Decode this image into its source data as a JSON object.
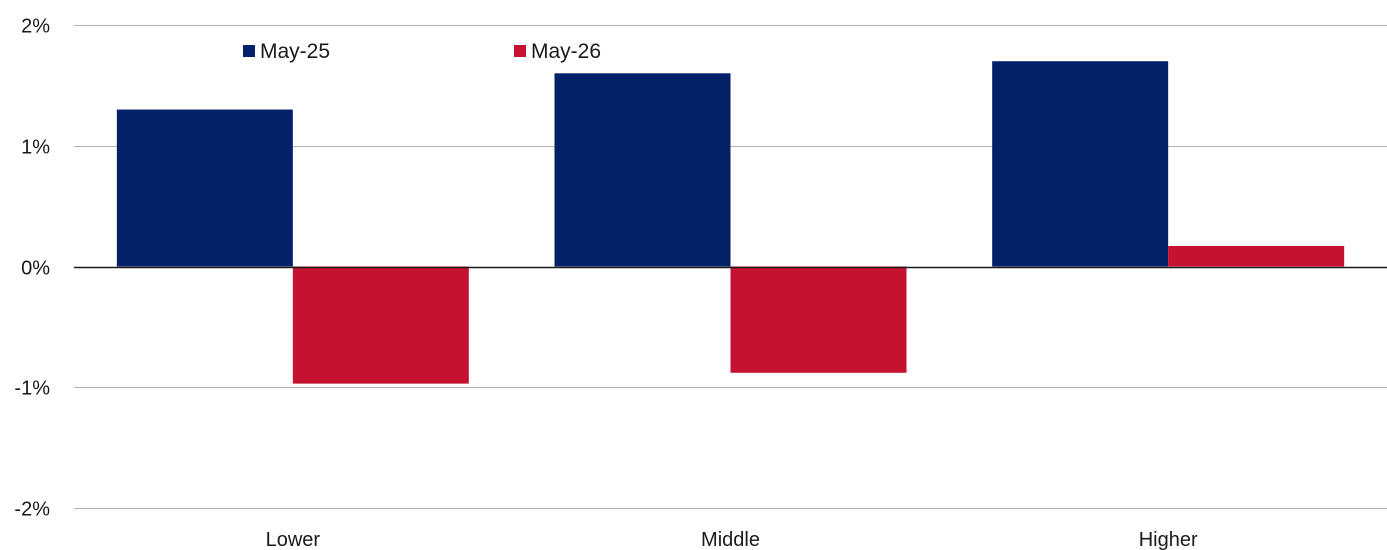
{
  "chart_data": {
    "type": "bar",
    "title": "",
    "xlabel": "",
    "ylabel": "",
    "categories": [
      "Lower",
      "Middle",
      "Higher"
    ],
    "series": [
      {
        "name": "May-25",
        "values": [
          1.3,
          1.6,
          1.7
        ],
        "color": "#022169"
      },
      {
        "name": "May-26",
        "values": [
          -0.97,
          -0.88,
          0.17
        ],
        "color": "#c41230"
      }
    ],
    "ylim": [
      -2,
      2
    ],
    "yticks": [
      -2,
      -1,
      0,
      1,
      2
    ],
    "ytick_labels": [
      "-2%",
      "-1%",
      "0%",
      "1%",
      "2%"
    ],
    "grid": true,
    "legend_position": "top-left"
  }
}
